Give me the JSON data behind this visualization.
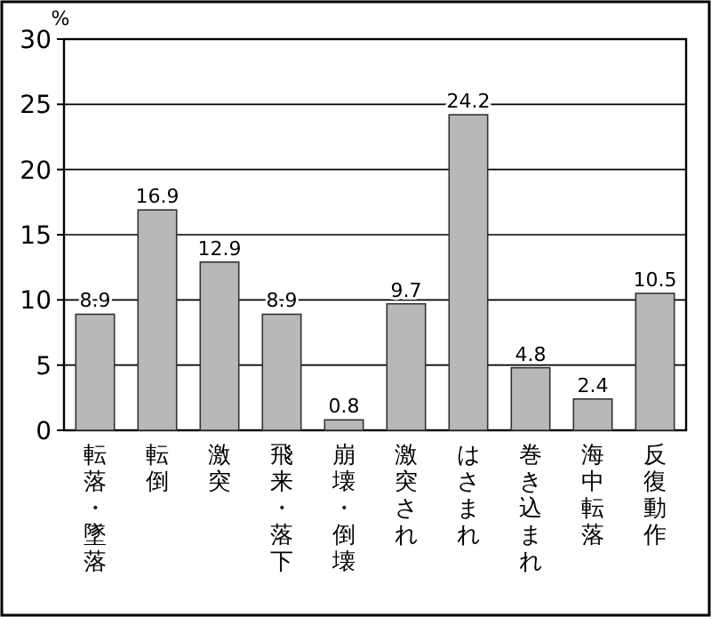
{
  "chart_data": {
    "type": "bar",
    "ylabel": "%",
    "categories": [
      "転落・墜落",
      "転倒",
      "激突",
      "飛来・落下",
      "崩壊・倒壊",
      "激突され",
      "はさまれ",
      "巻き込まれ",
      "海中転落",
      "反復動作"
    ],
    "values": [
      8.9,
      16.9,
      12.9,
      8.9,
      0.8,
      9.7,
      24.2,
      4.8,
      2.4,
      10.5
    ],
    "color": "#b8b8b8",
    "ylim": [
      0,
      30
    ],
    "yticks": [
      0,
      5,
      10,
      15,
      20,
      25,
      30
    ],
    "grid": "y",
    "data_labels": true
  }
}
